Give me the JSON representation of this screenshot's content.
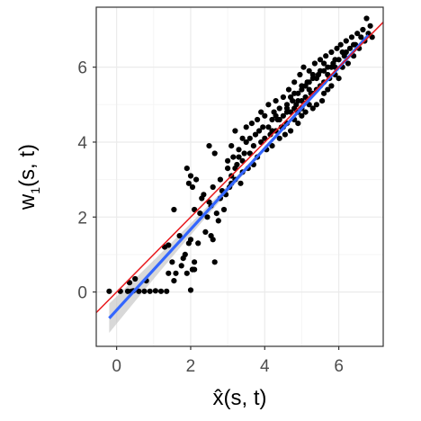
{
  "chart_data": {
    "type": "scatter",
    "title": "",
    "xlabel": {
      "text": "x̂(s, t)"
    },
    "ylabel": {
      "base": "w",
      "subscript": "1",
      "args": "(s, t)"
    },
    "xlim": [
      -0.55,
      7.2
    ],
    "ylim": [
      -1.45,
      7.6
    ],
    "x_ticks": [
      0,
      2,
      4,
      6
    ],
    "y_ticks": [
      0,
      2,
      4,
      6
    ],
    "grid": true,
    "colors": {
      "points": "#000000",
      "fit_line": "#3366ff",
      "ribbon": "#c7c7c7",
      "reference_line": "#e8191d",
      "panel_border": "#333333",
      "grid_major": "#ebebeb",
      "grid_minor": "#f5f5f5"
    },
    "series": [
      {
        "type": "scatter",
        "points": [
          [
            -0.2,
            0.02
          ],
          [
            0.1,
            0.02
          ],
          [
            0.3,
            0.02
          ],
          [
            0.45,
            0.03
          ],
          [
            0.5,
            0.35
          ],
          [
            0.6,
            0.02
          ],
          [
            0.75,
            0.02
          ],
          [
            0.9,
            0.02
          ],
          [
            1.05,
            0.03
          ],
          [
            1.2,
            0.02
          ],
          [
            1.35,
            0.02
          ],
          [
            1.4,
            0.5
          ],
          [
            0.8,
            0.3
          ],
          [
            0.35,
            0.25
          ],
          [
            0.4,
            0.02
          ],
          [
            1.3,
            1.2
          ],
          [
            1.4,
            1.25
          ],
          [
            1.5,
            0.8
          ],
          [
            1.55,
            0.3
          ],
          [
            1.6,
            0.5
          ],
          [
            1.7,
            1.5
          ],
          [
            1.75,
            0.7
          ],
          [
            1.8,
            0.9
          ],
          [
            1.85,
            1.0
          ],
          [
            1.9,
            0.5
          ],
          [
            1.95,
            1.3
          ],
          [
            2.0,
            1.4
          ],
          [
            2.05,
            0.6
          ],
          [
            2.1,
            0.8
          ],
          [
            2.1,
            0.6
          ],
          [
            2.0,
            0.05
          ],
          [
            2.05,
            0.6
          ],
          [
            1.55,
            2.2
          ],
          [
            1.9,
            3.3
          ],
          [
            1.95,
            2.9
          ],
          [
            2.0,
            3.1
          ],
          [
            2.05,
            2.8
          ],
          [
            2.1,
            2.2
          ],
          [
            2.15,
            3.0
          ],
          [
            2.2,
            1.3
          ],
          [
            2.25,
            2.1
          ],
          [
            2.3,
            2.5
          ],
          [
            2.35,
            2.6
          ],
          [
            2.4,
            1.6
          ],
          [
            2.45,
            2.0
          ],
          [
            2.5,
            2.4
          ],
          [
            2.5,
            3.9
          ],
          [
            2.55,
            2.3
          ],
          [
            2.55,
            1.5
          ],
          [
            2.6,
            1.4
          ],
          [
            2.6,
            2.8
          ],
          [
            2.65,
            3.7
          ],
          [
            2.65,
            0.8
          ],
          [
            2.7,
            2.1
          ],
          [
            2.75,
            1.9
          ],
          [
            2.8,
            2.5
          ],
          [
            2.8,
            3.0
          ],
          [
            2.85,
            2.7
          ],
          [
            2.9,
            2.2
          ],
          [
            2.95,
            2.6
          ],
          [
            3.0,
            3.3
          ],
          [
            3.0,
            3.5
          ],
          [
            3.05,
            2.8
          ],
          [
            3.1,
            3.9
          ],
          [
            3.1,
            3.1
          ],
          [
            3.15,
            3.6
          ],
          [
            3.2,
            3.0
          ],
          [
            3.2,
            4.3
          ],
          [
            3.25,
            3.4
          ],
          [
            3.3,
            3.8
          ],
          [
            3.35,
            2.9
          ],
          [
            3.4,
            4.1
          ],
          [
            3.4,
            3.5
          ],
          [
            3.45,
            3.7
          ],
          [
            3.5,
            4.0
          ],
          [
            3.5,
            4.4
          ],
          [
            3.55,
            3.3
          ],
          [
            3.6,
            4.1
          ],
          [
            3.65,
            4.5
          ],
          [
            3.7,
            3.9
          ],
          [
            3.75,
            4.2
          ],
          [
            3.8,
            4.6
          ],
          [
            3.8,
            3.6
          ],
          [
            3.85,
            4.3
          ],
          [
            3.9,
            4.8
          ],
          [
            3.9,
            4.0
          ],
          [
            3.95,
            4.4
          ],
          [
            4.0,
            4.1
          ],
          [
            4.0,
            4.7
          ],
          [
            4.05,
            3.8
          ],
          [
            4.1,
            4.4
          ],
          [
            4.1,
            5.0
          ],
          [
            4.15,
            4.2
          ],
          [
            4.2,
            4.6
          ],
          [
            4.2,
            3.9
          ],
          [
            4.25,
            4.8
          ],
          [
            4.3,
            4.3
          ],
          [
            4.3,
            5.1
          ],
          [
            4.35,
            4.6
          ],
          [
            4.4,
            4.1
          ],
          [
            4.4,
            4.9
          ],
          [
            4.45,
            4.4
          ],
          [
            4.5,
            5.2
          ],
          [
            4.5,
            4.7
          ],
          [
            4.55,
            4.2
          ],
          [
            4.6,
            5.0
          ],
          [
            4.6,
            4.5
          ],
          [
            4.65,
            5.4
          ],
          [
            4.7,
            4.8
          ],
          [
            4.7,
            4.3
          ],
          [
            4.75,
            5.1
          ],
          [
            4.8,
            5.6
          ],
          [
            4.8,
            4.6
          ],
          [
            4.85,
            5.0
          ],
          [
            4.9,
            5.3
          ],
          [
            4.9,
            4.5
          ],
          [
            4.95,
            5.8
          ],
          [
            5.0,
            5.1
          ],
          [
            5.0,
            4.7
          ],
          [
            5.0,
            5.5
          ],
          [
            5.05,
            6.0
          ],
          [
            5.1,
            5.2
          ],
          [
            5.1,
            4.8
          ],
          [
            5.15,
            5.6
          ],
          [
            5.2,
            5.0
          ],
          [
            5.2,
            5.9
          ],
          [
            5.25,
            5.3
          ],
          [
            5.3,
            5.7
          ],
          [
            5.3,
            4.9
          ],
          [
            5.35,
            6.1
          ],
          [
            5.4,
            5.4
          ],
          [
            5.4,
            5.0
          ],
          [
            5.45,
            5.8
          ],
          [
            5.5,
            5.5
          ],
          [
            5.5,
            6.2
          ],
          [
            5.55,
            5.1
          ],
          [
            5.6,
            5.9
          ],
          [
            5.6,
            5.6
          ],
          [
            5.65,
            6.3
          ],
          [
            5.7,
            5.4
          ],
          [
            5.7,
            6.0
          ],
          [
            5.75,
            5.7
          ],
          [
            5.8,
            6.4
          ],
          [
            5.8,
            5.5
          ],
          [
            5.85,
            6.1
          ],
          [
            5.9,
            5.8
          ],
          [
            5.95,
            6.5
          ],
          [
            6.0,
            6.2
          ],
          [
            6.0,
            5.7
          ],
          [
            6.05,
            6.6
          ],
          [
            6.1,
            6.0
          ],
          [
            6.15,
            6.3
          ],
          [
            6.2,
            6.7
          ],
          [
            6.25,
            6.1
          ],
          [
            6.3,
            6.5
          ],
          [
            6.35,
            6.8
          ],
          [
            6.4,
            6.3
          ],
          [
            6.45,
            6.6
          ],
          [
            6.5,
            6.9
          ],
          [
            6.55,
            6.5
          ],
          [
            6.6,
            6.8
          ],
          [
            6.65,
            7.0
          ],
          [
            6.7,
            6.7
          ],
          [
            6.75,
            7.3
          ],
          [
            6.8,
            6.9
          ],
          [
            6.85,
            7.1
          ],
          [
            6.9,
            6.8
          ],
          [
            4.7,
            5.2
          ],
          [
            4.8,
            5.3
          ],
          [
            4.9,
            5.1
          ],
          [
            5.0,
            5.4
          ],
          [
            5.1,
            5.5
          ],
          [
            5.2,
            5.6
          ],
          [
            5.3,
            5.3
          ],
          [
            5.4,
            5.7
          ],
          [
            5.5,
            5.9
          ],
          [
            5.6,
            6.1
          ],
          [
            4.6,
            4.9
          ],
          [
            4.5,
            4.4
          ],
          [
            4.4,
            4.6
          ],
          [
            5.7,
            5.8
          ],
          [
            5.8,
            6.0
          ],
          [
            5.9,
            6.2
          ],
          [
            6.1,
            6.4
          ],
          [
            5.2,
            5.4
          ],
          [
            5.0,
            4.9
          ],
          [
            4.8,
            4.9
          ],
          [
            3.6,
            3.7
          ],
          [
            3.7,
            3.4
          ],
          [
            3.3,
            3.6
          ],
          [
            3.2,
            3.3
          ],
          [
            3.4,
            3.2
          ],
          [
            3.1,
            2.9
          ],
          [
            4.2,
            4.3
          ],
          [
            4.3,
            4.7
          ],
          [
            4.6,
            4.8
          ],
          [
            4.9,
            4.8
          ],
          [
            5.3,
            5.8
          ],
          [
            5.6,
            5.3
          ],
          [
            5.9,
            6.0
          ],
          [
            6.2,
            6.4
          ],
          [
            6.4,
            6.6
          ]
        ]
      },
      {
        "type": "line",
        "x": [
          -0.2,
          6.8
        ],
        "y": [
          -0.7,
          6.85
        ]
      },
      {
        "type": "line",
        "x": [
          -0.55,
          7.2
        ],
        "y": [
          -0.55,
          7.2
        ]
      }
    ]
  }
}
